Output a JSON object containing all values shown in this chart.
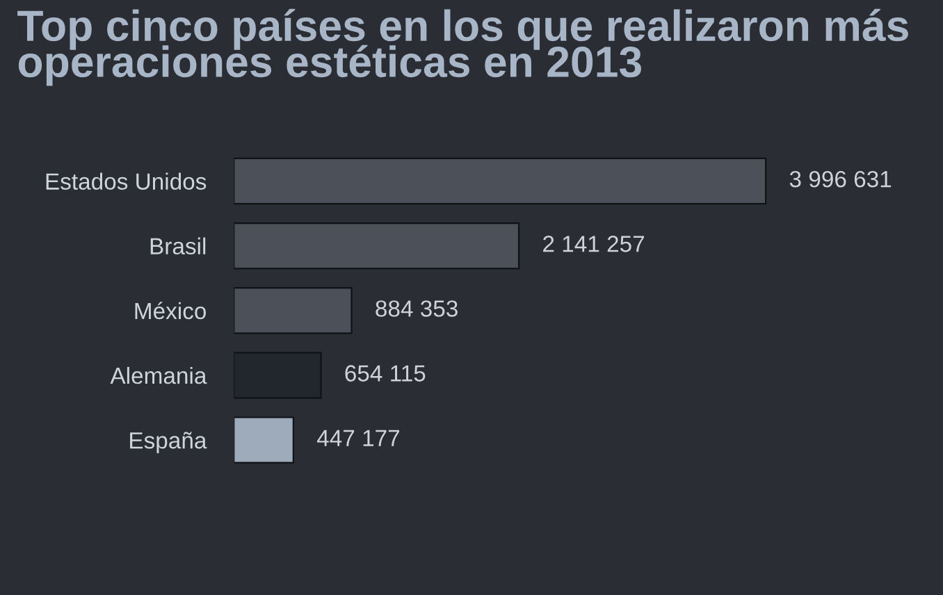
{
  "chart_data": {
    "type": "bar",
    "orientation": "horizontal",
    "title": "Top cinco países en los que realizaron más operaciones estéticas en 2013",
    "categories": [
      "Estados Unidos",
      "Brasil",
      "México",
      "Alemania",
      "España"
    ],
    "values": [
      3996631,
      2141257,
      884353,
      654115,
      447177
    ],
    "colors": [
      "#4b5059",
      "#4b5059",
      "#4b5059",
      "#22272e",
      "#9dabbb"
    ],
    "value_labels": [
      "3 996 631",
      "2 141 257",
      "884 353",
      "654 115",
      "447 177"
    ],
    "grid": false,
    "legend": false,
    "tick_labels": "y"
  }
}
